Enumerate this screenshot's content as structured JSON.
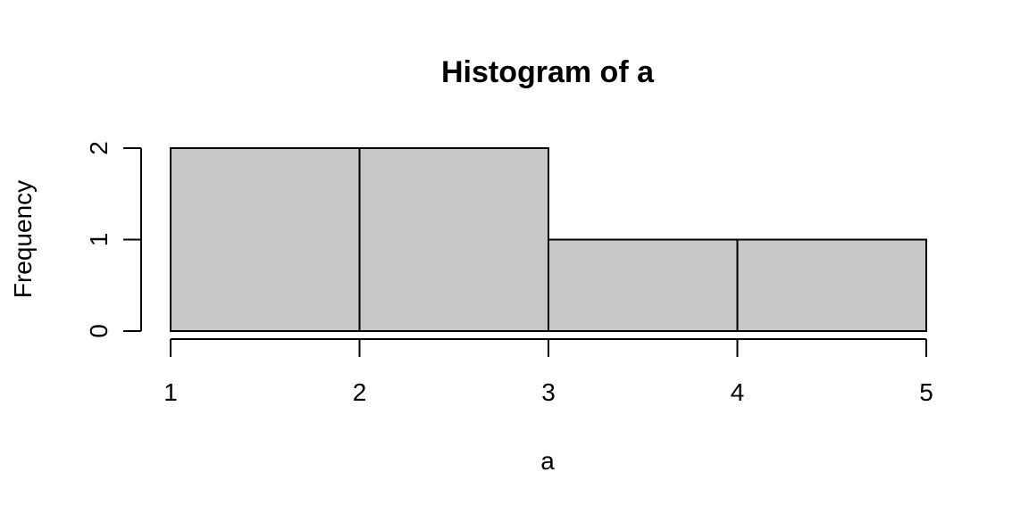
{
  "chart_data": {
    "type": "histogram",
    "title": "Histogram of a",
    "xlabel": "a",
    "ylabel": "Frequency",
    "bins": [
      {
        "from": 1,
        "to": 2,
        "count": 2
      },
      {
        "from": 2,
        "to": 3,
        "count": 2
      },
      {
        "from": 3,
        "to": 4,
        "count": 1
      },
      {
        "from": 4,
        "to": 5,
        "count": 1
      }
    ],
    "xticks": [
      1,
      2,
      3,
      4,
      5
    ],
    "yticks": [
      0,
      1,
      2
    ],
    "xlim": [
      1,
      5
    ],
    "ylim": [
      0,
      2
    ],
    "bar_color": "#c8c8c8",
    "edge_color": "#000000",
    "grid": false
  }
}
